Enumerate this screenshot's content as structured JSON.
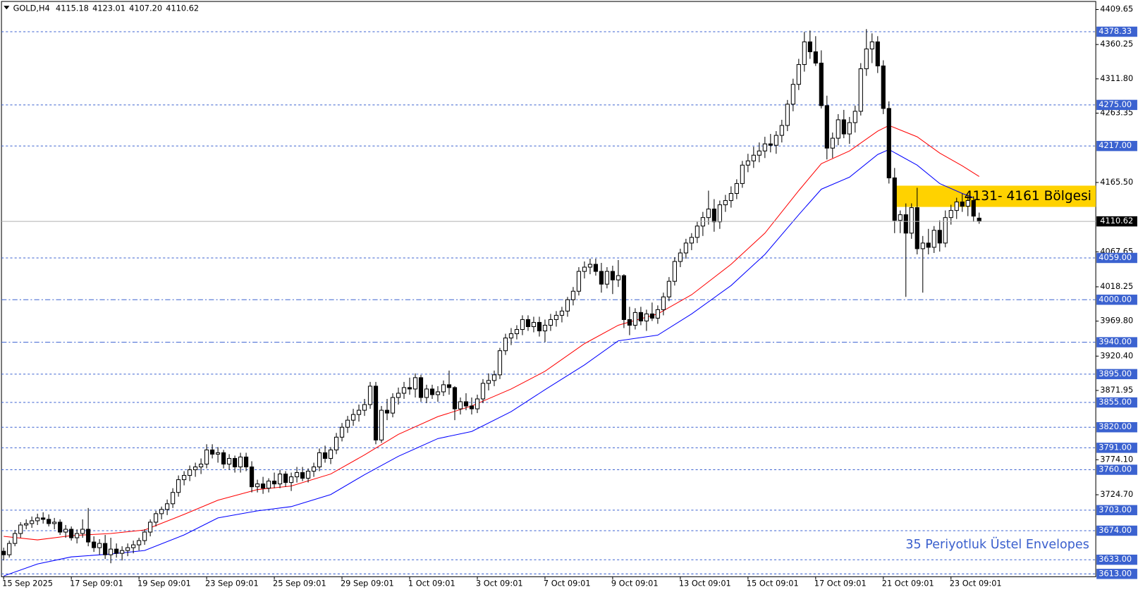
{
  "chart_data": {
    "type": "candlestick",
    "symbol": "GOLD,H4",
    "header": [
      "4115.18",
      "4123.01",
      "4107.20",
      "4110.62"
    ],
    "categories": [
      "15 Sep 2025",
      null,
      null,
      null,
      null,
      null,
      null,
      null,
      null,
      null,
      null,
      null,
      "17 Sep 09:01",
      null,
      null,
      null,
      null,
      null,
      null,
      null,
      null,
      null,
      null,
      null,
      "19 Sep 09:01",
      null,
      null,
      null,
      null,
      null,
      null,
      null,
      null,
      null,
      null,
      null,
      "23 Sep 09:01",
      null,
      null,
      null,
      null,
      null,
      null,
      null,
      null,
      null,
      null,
      null,
      "25 Sep 09:01",
      null,
      null,
      null,
      null,
      null,
      null,
      null,
      null,
      null,
      null,
      null,
      "29 Sep 09:01",
      null,
      null,
      null,
      null,
      null,
      null,
      null,
      null,
      null,
      null,
      null,
      "1 Oct 09:01",
      null,
      null,
      null,
      null,
      null,
      null,
      null,
      null,
      null,
      null,
      null,
      "3 Oct 09:01",
      null,
      null,
      null,
      null,
      null,
      null,
      null,
      null,
      null,
      null,
      null,
      "7 Oct 09:01",
      null,
      null,
      null,
      null,
      null,
      null,
      null,
      null,
      null,
      null,
      null,
      "9 Oct 09:01",
      null,
      null,
      null,
      null,
      null,
      null,
      null,
      null,
      null,
      null,
      null,
      "13 Oct 09:01",
      null,
      null,
      null,
      null,
      null,
      null,
      null,
      null,
      null,
      null,
      null,
      "15 Oct 09:01",
      null,
      null,
      null,
      null,
      null,
      null,
      null,
      null,
      null,
      null,
      null,
      "17 Oct 09:01",
      null,
      null,
      null,
      null,
      null,
      null,
      null,
      null,
      null,
      null,
      null,
      "21 Oct 09:01",
      null,
      null,
      null,
      null,
      null,
      null,
      null,
      null,
      null,
      null,
      null,
      "23 Oct 09:01",
      null,
      null,
      null,
      null,
      null
    ],
    "candles": [
      [
        3645,
        3650,
        3632,
        3640
      ],
      [
        3640,
        3660,
        3636,
        3656
      ],
      [
        3656,
        3675,
        3652,
        3670
      ],
      [
        3670,
        3686,
        3664,
        3682
      ],
      [
        3682,
        3690,
        3676,
        3684
      ],
      [
        3684,
        3694,
        3678,
        3688
      ],
      [
        3688,
        3698,
        3682,
        3692
      ],
      [
        3692,
        3700,
        3684,
        3690
      ],
      [
        3690,
        3697,
        3680,
        3684
      ],
      [
        3684,
        3692,
        3676,
        3686
      ],
      [
        3686,
        3690,
        3668,
        3672
      ],
      [
        3672,
        3682,
        3664,
        3676
      ],
      [
        3676,
        3680,
        3660,
        3664
      ],
      [
        3664,
        3676,
        3656,
        3670
      ],
      [
        3670,
        3690,
        3664,
        3676
      ],
      [
        3676,
        3706,
        3652,
        3658
      ],
      [
        3658,
        3666,
        3644,
        3650
      ],
      [
        3650,
        3662,
        3640,
        3656
      ],
      [
        3656,
        3668,
        3634,
        3640
      ],
      [
        3640,
        3664,
        3628,
        3648
      ],
      [
        3648,
        3656,
        3636,
        3642
      ],
      [
        3642,
        3652,
        3632,
        3646
      ],
      [
        3646,
        3656,
        3638,
        3650
      ],
      [
        3650,
        3660,
        3642,
        3654
      ],
      [
        3654,
        3664,
        3646,
        3660
      ],
      [
        3660,
        3676,
        3654,
        3672
      ],
      [
        3672,
        3690,
        3666,
        3686
      ],
      [
        3686,
        3702,
        3680,
        3698
      ],
      [
        3698,
        3708,
        3690,
        3704
      ],
      [
        3704,
        3718,
        3696,
        3712
      ],
      [
        3712,
        3734,
        3706,
        3728
      ],
      [
        3728,
        3752,
        3722,
        3746
      ],
      [
        3746,
        3758,
        3738,
        3752
      ],
      [
        3752,
        3766,
        3744,
        3760
      ],
      [
        3760,
        3770,
        3750,
        3764
      ],
      [
        3764,
        3776,
        3754,
        3768
      ],
      [
        3768,
        3796,
        3762,
        3788
      ],
      [
        3788,
        3796,
        3776,
        3782
      ],
      [
        3782,
        3792,
        3770,
        3784
      ],
      [
        3784,
        3788,
        3762,
        3768
      ],
      [
        3768,
        3782,
        3760,
        3776
      ],
      [
        3776,
        3780,
        3756,
        3764
      ],
      [
        3764,
        3784,
        3756,
        3778
      ],
      [
        3778,
        3784,
        3758,
        3764
      ],
      [
        3764,
        3772,
        3728,
        3736
      ],
      [
        3736,
        3746,
        3728,
        3740
      ],
      [
        3740,
        3750,
        3726,
        3734
      ],
      [
        3734,
        3748,
        3728,
        3744
      ],
      [
        3744,
        3756,
        3734,
        3740
      ],
      [
        3740,
        3760,
        3734,
        3754
      ],
      [
        3754,
        3758,
        3736,
        3742
      ],
      [
        3742,
        3756,
        3730,
        3750
      ],
      [
        3750,
        3764,
        3742,
        3756
      ],
      [
        3756,
        3764,
        3744,
        3748
      ],
      [
        3748,
        3762,
        3742,
        3758
      ],
      [
        3758,
        3770,
        3750,
        3764
      ],
      [
        3764,
        3790,
        3758,
        3784
      ],
      [
        3784,
        3794,
        3770,
        3776
      ],
      [
        3776,
        3792,
        3768,
        3788
      ],
      [
        3788,
        3812,
        3782,
        3806
      ],
      [
        3806,
        3826,
        3800,
        3820
      ],
      [
        3820,
        3836,
        3812,
        3830
      ],
      [
        3830,
        3846,
        3822,
        3838
      ],
      [
        3838,
        3852,
        3828,
        3844
      ],
      [
        3844,
        3860,
        3836,
        3852
      ],
      [
        3852,
        3884,
        3846,
        3878
      ],
      [
        3878,
        3884,
        3796,
        3802
      ],
      [
        3802,
        3850,
        3798,
        3844
      ],
      [
        3844,
        3860,
        3830,
        3840
      ],
      [
        3840,
        3868,
        3834,
        3862
      ],
      [
        3862,
        3876,
        3852,
        3868
      ],
      [
        3868,
        3884,
        3860,
        3876
      ],
      [
        3876,
        3890,
        3866,
        3874
      ],
      [
        3874,
        3896,
        3862,
        3890
      ],
      [
        3890,
        3894,
        3856,
        3862
      ],
      [
        3862,
        3880,
        3854,
        3874
      ],
      [
        3874,
        3880,
        3860,
        3866
      ],
      [
        3866,
        3878,
        3856,
        3870
      ],
      [
        3870,
        3886,
        3864,
        3880
      ],
      [
        3880,
        3900,
        3866,
        3876
      ],
      [
        3876,
        3878,
        3830,
        3846
      ],
      [
        3846,
        3862,
        3838,
        3856
      ],
      [
        3856,
        3868,
        3844,
        3850
      ],
      [
        3850,
        3862,
        3838,
        3846
      ],
      [
        3846,
        3866,
        3840,
        3860
      ],
      [
        3860,
        3888,
        3854,
        3882
      ],
      [
        3882,
        3896,
        3872,
        3886
      ],
      [
        3886,
        3900,
        3878,
        3894
      ],
      [
        3894,
        3932,
        3888,
        3928
      ],
      [
        3928,
        3952,
        3922,
        3946
      ],
      [
        3946,
        3960,
        3936,
        3952
      ],
      [
        3952,
        3964,
        3944,
        3958
      ],
      [
        3958,
        3978,
        3950,
        3972
      ],
      [
        3972,
        3978,
        3956,
        3962
      ],
      [
        3962,
        3976,
        3954,
        3968
      ],
      [
        3968,
        3976,
        3948,
        3956
      ],
      [
        3956,
        3972,
        3940,
        3964
      ],
      [
        3964,
        3980,
        3956,
        3972
      ],
      [
        3972,
        3984,
        3962,
        3978
      ],
      [
        3978,
        3990,
        3968,
        3984
      ],
      [
        3984,
        4004,
        3976,
        4000
      ],
      [
        4000,
        4018,
        3992,
        4012
      ],
      [
        4012,
        4046,
        4006,
        4040
      ],
      [
        4040,
        4054,
        4030,
        4046
      ],
      [
        4046,
        4058,
        4036,
        4050
      ],
      [
        4050,
        4058,
        4034,
        4040
      ],
      [
        4040,
        4052,
        4010,
        4022
      ],
      [
        4022,
        4046,
        4016,
        4040
      ],
      [
        4040,
        4048,
        4008,
        4028
      ],
      [
        4028,
        4056,
        4018,
        4034
      ],
      [
        4034,
        4036,
        3960,
        3972
      ],
      [
        3972,
        3990,
        3950,
        3964
      ],
      [
        3964,
        3988,
        3958,
        3982
      ],
      [
        3982,
        3990,
        3964,
        3970
      ],
      [
        3970,
        3986,
        3956,
        3980
      ],
      [
        3980,
        3996,
        3970,
        3974
      ],
      [
        3974,
        3992,
        3966,
        3986
      ],
      [
        3986,
        4010,
        3978,
        4004
      ],
      [
        4004,
        4032,
        3998,
        4026
      ],
      [
        4026,
        4060,
        4020,
        4054
      ],
      [
        4054,
        4072,
        4046,
        4066
      ],
      [
        4066,
        4086,
        4058,
        4080
      ],
      [
        4080,
        4094,
        4070,
        4088
      ],
      [
        4088,
        4110,
        4080,
        4104
      ],
      [
        4104,
        4124,
        4090,
        4116
      ],
      [
        4116,
        4154,
        4106,
        4128
      ],
      [
        4128,
        4142,
        4096,
        4110
      ],
      [
        4110,
        4140,
        4100,
        4134
      ],
      [
        4134,
        4148,
        4124,
        4140
      ],
      [
        4140,
        4160,
        4130,
        4150
      ],
      [
        4150,
        4170,
        4142,
        4164
      ],
      [
        4164,
        4196,
        4158,
        4190
      ],
      [
        4190,
        4206,
        4180,
        4196
      ],
      [
        4196,
        4216,
        4186,
        4204
      ],
      [
        4204,
        4222,
        4194,
        4210
      ],
      [
        4210,
        4230,
        4200,
        4220
      ],
      [
        4220,
        4234,
        4208,
        4218
      ],
      [
        4218,
        4238,
        4206,
        4232
      ],
      [
        4232,
        4254,
        4222,
        4246
      ],
      [
        4246,
        4282,
        4238,
        4276
      ],
      [
        4276,
        4312,
        4266,
        4304
      ],
      [
        4304,
        4340,
        4296,
        4332
      ],
      [
        4332,
        4378,
        4322,
        4364
      ],
      [
        4364,
        4380,
        4340,
        4350
      ],
      [
        4350,
        4372,
        4330,
        4334
      ],
      [
        4334,
        4352,
        4270,
        4274
      ],
      [
        4274,
        4288,
        4198,
        4214
      ],
      [
        4214,
        4236,
        4200,
        4228
      ],
      [
        4228,
        4262,
        4218,
        4254
      ],
      [
        4254,
        4268,
        4228,
        4234
      ],
      [
        4234,
        4258,
        4220,
        4250
      ],
      [
        4250,
        4274,
        4236,
        4266
      ],
      [
        4266,
        4334,
        4260,
        4326
      ],
      [
        4326,
        4382,
        4316,
        4354
      ],
      [
        4354,
        4376,
        4334,
        4364
      ],
      [
        4364,
        4372,
        4320,
        4330
      ],
      [
        4330,
        4338,
        4262,
        4270
      ],
      [
        4270,
        4280,
        4164,
        4172
      ],
      [
        4172,
        4186,
        4094,
        4112
      ],
      [
        4112,
        4126,
        4094,
        4120
      ],
      [
        4120,
        4136,
        4004,
        4094
      ],
      [
        4094,
        4136,
        4086,
        4130
      ],
      [
        4130,
        4158,
        4064,
        4072
      ],
      [
        4072,
        4090,
        4010,
        4080
      ],
      [
        4080,
        4100,
        4064,
        4074
      ],
      [
        4074,
        4104,
        4066,
        4098
      ],
      [
        4098,
        4112,
        4068,
        4080
      ],
      [
        4080,
        4126,
        4074,
        4116
      ],
      [
        4116,
        4134,
        4106,
        4126
      ],
      [
        4126,
        4144,
        4114,
        4138
      ],
      [
        4138,
        4150,
        4124,
        4132
      ],
      [
        4132,
        4148,
        4118,
        4140
      ],
      [
        4140,
        4146,
        4110,
        4118
      ],
      [
        4115.18,
        4123.01,
        4107.2,
        4110.62
      ]
    ],
    "envelopes": {
      "label": "35 Periyotluk Üstel Envelopes",
      "label_color": "#3a5fcd",
      "upper": {
        "color": "#ff0000",
        "x": [
          0,
          6,
          12,
          19,
          25,
          32,
          38,
          45,
          51,
          58,
          64,
          70,
          77,
          83,
          90,
          96,
          103,
          109,
          116,
          122,
          129,
          135,
          141,
          145,
          150,
          155,
          157,
          162,
          166,
          170,
          173
        ],
        "values": [
          3666,
          3661,
          3667,
          3670,
          3675,
          3697,
          3717,
          3732,
          3737,
          3754,
          3781,
          3810,
          3835,
          3850,
          3874,
          3899,
          3938,
          3964,
          3980,
          4007,
          4050,
          4094,
          4154,
          4192,
          4210,
          4238,
          4246,
          4230,
          4207,
          4189,
          4174
        ]
      },
      "lower": {
        "color": "#0000ff",
        "x": [
          0,
          6,
          12,
          19,
          25,
          32,
          38,
          45,
          51,
          58,
          64,
          70,
          77,
          83,
          90,
          96,
          103,
          109,
          116,
          122,
          129,
          135,
          141,
          145,
          150,
          155,
          157,
          162,
          166,
          170,
          172
        ],
        "values": [
          3610,
          3627,
          3637,
          3641,
          3646,
          3668,
          3692,
          3702,
          3708,
          3725,
          3753,
          3779,
          3804,
          3814,
          3842,
          3873,
          3908,
          3942,
          3950,
          3980,
          4020,
          4064,
          4120,
          4156,
          4173,
          4205,
          4212,
          4190,
          4164,
          4150,
          4144
        ]
      }
    },
    "zone": {
      "low": 4131,
      "high": 4161,
      "label": "4131- 4161 Bölgesi",
      "color": "#ffd200"
    },
    "ylim": [
      3609,
      4420
    ],
    "yticks": [
      4409.65,
      4360.25,
      {
        "value": 4311.8,
        "label": "4311.80"
      },
      4263.35,
      {
        "value": 4165.5,
        "label": "4165.50"
      },
      4067.65,
      4018.25,
      {
        "value": 3969.8,
        "label": "3969.80"
      },
      {
        "value": 3920.4,
        "label": "3920.40"
      },
      3871.95,
      {
        "value": 3774.1,
        "label": "3774.10"
      },
      {
        "value": 3724.7,
        "label": "3724.70"
      }
    ],
    "level_color": "#3b62d0",
    "levels": [
      {
        "value": 4378.33,
        "style": "dash"
      },
      {
        "value": 4275,
        "label": "4275.00",
        "style": "dash"
      },
      {
        "value": 4217,
        "label": "4217.00",
        "style": "dash"
      },
      {
        "value": 4059,
        "label": "4059.00",
        "style": "dash"
      },
      {
        "value": 4000,
        "label": "4000.00",
        "style": "dashdot"
      },
      {
        "value": 3940,
        "label": "3940.00",
        "style": "dashdot"
      },
      {
        "value": 3895,
        "label": "3895.00",
        "style": "dash"
      },
      {
        "value": 3855,
        "label": "3855.00",
        "style": "dash"
      },
      {
        "value": 3820,
        "label": "3820.00",
        "style": "dash"
      },
      {
        "value": 3791,
        "label": "3791.00",
        "style": "dash"
      },
      {
        "value": 3760,
        "label": "3760.00",
        "style": "dash"
      },
      {
        "value": 3703,
        "label": "3703.00",
        "style": "dash"
      },
      {
        "value": 3674,
        "label": "3674.00",
        "style": "dash"
      },
      {
        "value": 3633,
        "label": "3633.00",
        "style": "dash"
      },
      {
        "value": 3613,
        "label": "3613.00",
        "style": "dash"
      }
    ],
    "grid": false
  }
}
